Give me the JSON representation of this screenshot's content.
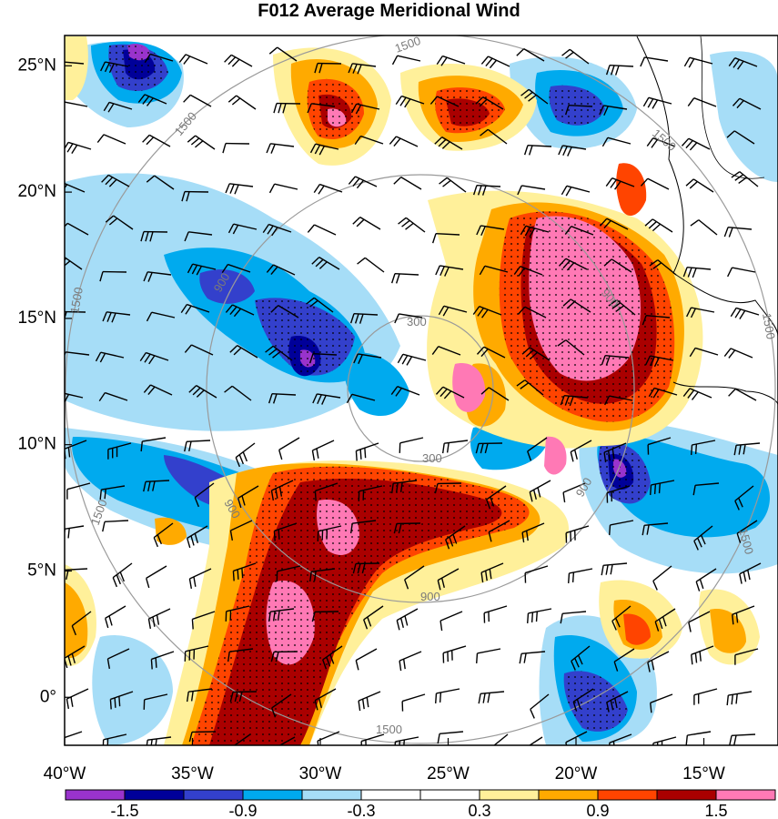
{
  "title": "F012 Average Meridional Wind",
  "lat_labels": [
    "25°N",
    "20°N",
    "15°N",
    "10°N",
    "5°N",
    "0°"
  ],
  "lat_values": [
    25,
    20,
    15,
    10,
    5,
    0
  ],
  "lon_labels": [
    "40°W",
    "35°W",
    "30°W",
    "25°W",
    "20°W",
    "15°W"
  ],
  "lon_values": [
    -40,
    -35,
    -30,
    -25,
    -20,
    -15
  ],
  "colorbar": {
    "colors": [
      "#9933cc",
      "#000099",
      "#3340cc",
      "#00aaee",
      "#a6ddf7",
      "#ffffff",
      "#ffffff",
      "#fff09a",
      "#ffaa00",
      "#ff4400",
      "#aa0000",
      "#ff79b5"
    ],
    "labels": [
      "-1.5",
      "-0.9",
      "-0.3",
      "0.3",
      "0.9",
      "1.5"
    ]
  },
  "range_ring_labels": [
    "1500",
    "1500",
    "1500",
    "1500",
    "1500",
    "1500",
    "1500",
    "900",
    "900",
    "900",
    "900",
    "300",
    "300"
  ]
}
